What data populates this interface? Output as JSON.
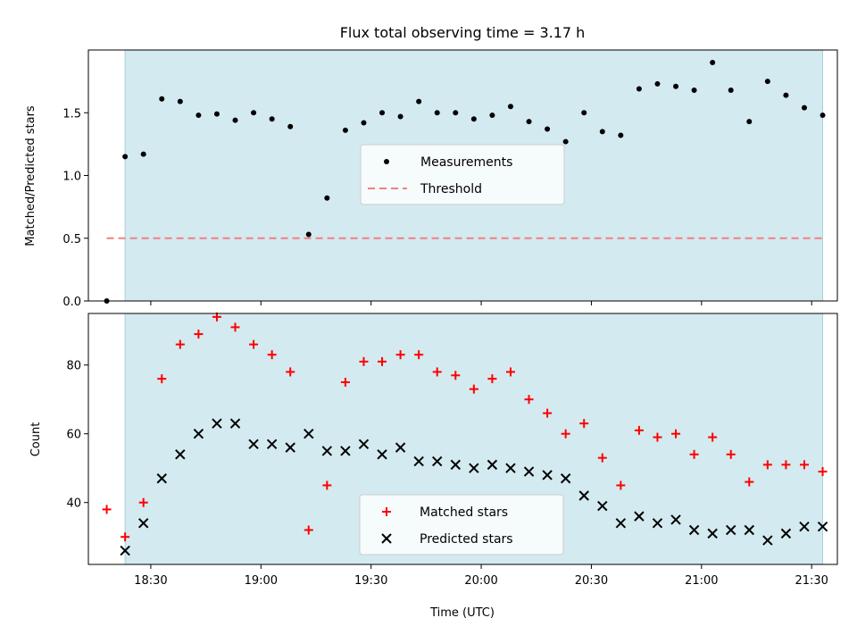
{
  "colors": {
    "background": "#ffffff",
    "shade": "#d3eaf0",
    "shade_edge": "#a8d0dc",
    "measurement": "#000000",
    "threshold": "#f08080",
    "matched": "#ff0000",
    "predicted": "#000000"
  },
  "chart_data": [
    {
      "type": "scatter",
      "title": "Flux total observing time = 3.17 h",
      "xlabel": "",
      "ylabel": "Matched/Predicted stars",
      "ylim": [
        0,
        2.0
      ],
      "yticks": [
        "0.0",
        "0.5",
        "1.0",
        "1.5"
      ],
      "xlim": [
        "18:13",
        "21:37"
      ],
      "shaded_interval": [
        "18:23",
        "21:33"
      ],
      "grid": false,
      "legend": {
        "position": "center",
        "entries": [
          "Measurements",
          "Threshold"
        ]
      },
      "threshold": {
        "name": "Threshold",
        "value": 0.5,
        "x_range": [
          "18:18",
          "21:33"
        ]
      },
      "series": [
        {
          "name": "Measurements",
          "marker": "dot",
          "x": [
            "18:18",
            "18:23",
            "18:28",
            "18:33",
            "18:38",
            "18:43",
            "18:48",
            "18:53",
            "18:58",
            "19:03",
            "19:08",
            "19:13",
            "19:18",
            "19:23",
            "19:28",
            "19:33",
            "19:38",
            "19:43",
            "19:48",
            "19:53",
            "19:58",
            "20:03",
            "20:08",
            "20:13",
            "20:18",
            "20:23",
            "20:28",
            "20:33",
            "20:38",
            "20:43",
            "20:48",
            "20:53",
            "20:58",
            "21:03",
            "21:08",
            "21:13",
            "21:18",
            "21:23",
            "21:28",
            "21:33"
          ],
          "y": [
            0.0,
            1.15,
            1.17,
            1.61,
            1.59,
            1.48,
            1.49,
            1.44,
            1.5,
            1.45,
            1.39,
            0.53,
            0.82,
            1.36,
            1.42,
            1.5,
            1.47,
            1.59,
            1.5,
            1.5,
            1.45,
            1.48,
            1.55,
            1.43,
            1.37,
            1.27,
            1.5,
            1.35,
            1.32,
            1.69,
            1.73,
            1.71,
            1.68,
            1.9,
            1.68,
            1.43,
            1.75,
            1.64,
            1.54,
            1.48
          ]
        }
      ]
    },
    {
      "type": "scatter",
      "title": "",
      "xlabel": "Time (UTC)",
      "ylabel": "Count",
      "ylim": [
        22,
        95
      ],
      "yticks": [
        "40",
        "60",
        "80"
      ],
      "xticks": [
        "18:30",
        "19:00",
        "19:30",
        "20:00",
        "20:30",
        "21:00",
        "21:30"
      ],
      "xlim": [
        "18:13",
        "21:37"
      ],
      "shaded_interval": [
        "18:23",
        "21:33"
      ],
      "grid": false,
      "legend": {
        "position": "lower center",
        "entries": [
          "Matched stars",
          "Predicted stars"
        ]
      },
      "series": [
        {
          "name": "Matched stars",
          "marker": "plus",
          "x": [
            "18:18",
            "18:23",
            "18:28",
            "18:33",
            "18:38",
            "18:43",
            "18:48",
            "18:53",
            "18:58",
            "19:03",
            "19:08",
            "19:13",
            "19:18",
            "19:23",
            "19:28",
            "19:33",
            "19:38",
            "19:43",
            "19:48",
            "19:53",
            "19:58",
            "20:03",
            "20:08",
            "20:13",
            "20:18",
            "20:23",
            "20:28",
            "20:33",
            "20:38",
            "20:43",
            "20:48",
            "20:53",
            "20:58",
            "21:03",
            "21:08",
            "21:13",
            "21:18",
            "21:23",
            "21:28",
            "21:33"
          ],
          "y": [
            38,
            30,
            40,
            76,
            86,
            89,
            94,
            91,
            86,
            83,
            78,
            32,
            45,
            75,
            81,
            81,
            83,
            83,
            78,
            77,
            73,
            76,
            78,
            70,
            66,
            60,
            63,
            53,
            45,
            61,
            59,
            60,
            54,
            59,
            54,
            46,
            51,
            51,
            51,
            49
          ]
        },
        {
          "name": "Predicted stars",
          "marker": "x",
          "x": [
            "18:23",
            "18:28",
            "18:33",
            "18:38",
            "18:43",
            "18:48",
            "18:53",
            "18:58",
            "19:03",
            "19:08",
            "19:13",
            "19:18",
            "19:23",
            "19:28",
            "19:33",
            "19:38",
            "19:43",
            "19:48",
            "19:53",
            "19:58",
            "20:03",
            "20:08",
            "20:13",
            "20:18",
            "20:23",
            "20:28",
            "20:33",
            "20:38",
            "20:43",
            "20:48",
            "20:53",
            "20:58",
            "21:03",
            "21:08",
            "21:13",
            "21:18",
            "21:23",
            "21:28",
            "21:33"
          ],
          "y": [
            26,
            34,
            47,
            54,
            60,
            63,
            63,
            57,
            57,
            56,
            60,
            55,
            55,
            57,
            54,
            56,
            52,
            52,
            51,
            50,
            51,
            50,
            49,
            48,
            47,
            42,
            39,
            34,
            36,
            34,
            35,
            32,
            31,
            32,
            32,
            29,
            31,
            33,
            33
          ]
        }
      ]
    }
  ]
}
